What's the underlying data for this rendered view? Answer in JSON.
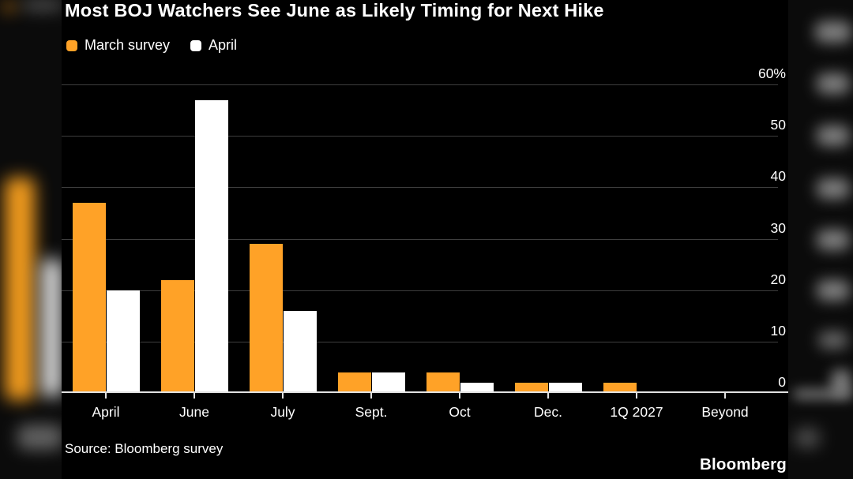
{
  "title": "Most BOJ Watchers See June as Likely Timing for Next Hike",
  "legend": [
    {
      "label": "March survey",
      "color": "#FFA227"
    },
    {
      "label": "April",
      "color": "#FFFFFF"
    }
  ],
  "chart_data": {
    "type": "bar",
    "categories": [
      "April",
      "June",
      "July",
      "Sept.",
      "Oct",
      "Dec.",
      "1Q 2027",
      "Beyond"
    ],
    "series": [
      {
        "name": "March survey",
        "color": "#FFA227",
        "values": [
          37,
          22,
          29,
          4,
          4,
          2,
          2,
          0
        ]
      },
      {
        "name": "April",
        "color": "#FFFFFF",
        "values": [
          20,
          57,
          16,
          4,
          2,
          2,
          0,
          0
        ]
      }
    ],
    "ylim": [
      0,
      60
    ],
    "y_ticks": [
      {
        "label": "60%",
        "value": 60
      },
      {
        "label": "50",
        "value": 50
      },
      {
        "label": "40",
        "value": 40
      },
      {
        "label": "30",
        "value": 30
      },
      {
        "label": "20",
        "value": 20
      },
      {
        "label": "10",
        "value": 10
      },
      {
        "label": "0",
        "value": 0
      }
    ],
    "grid": true,
    "legend_position": "top-left",
    "axis_side": "right",
    "xlabel": "",
    "ylabel": ""
  },
  "source": "Source: Bloomberg survey",
  "branding": "Bloomberg",
  "colors": {
    "background": "#000000",
    "gridline": "#3e3e3e",
    "axis": "#e2e2e2",
    "text": "#ffffff",
    "bar_march": "#FFA227",
    "bar_april": "#FFFFFF"
  }
}
